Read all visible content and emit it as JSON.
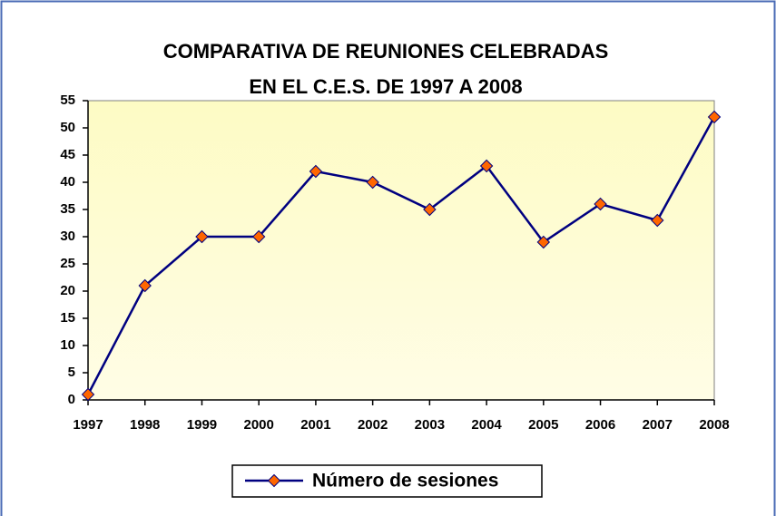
{
  "chart_data": {
    "type": "line",
    "title": [
      "COMPARATIVA DE REUNIONES CELEBRADAS",
      "EN EL C.E.S. DE 1997 A 2008"
    ],
    "categories": [
      "1997",
      "1998",
      "1999",
      "2000",
      "2001",
      "2002",
      "2003",
      "2004",
      "2005",
      "2006",
      "2007",
      "2008"
    ],
    "series": [
      {
        "name": "Número de sesiones",
        "color": "#000080",
        "marker_color": "#ff6600",
        "values": [
          1,
          21,
          30,
          30,
          42,
          40,
          35,
          43,
          29,
          36,
          33,
          52
        ]
      }
    ],
    "ylim": [
      0,
      55
    ],
    "yticks": [
      0,
      5,
      10,
      15,
      20,
      25,
      30,
      35,
      40,
      45,
      50,
      55
    ],
    "grid": false,
    "legend": "bottom"
  }
}
